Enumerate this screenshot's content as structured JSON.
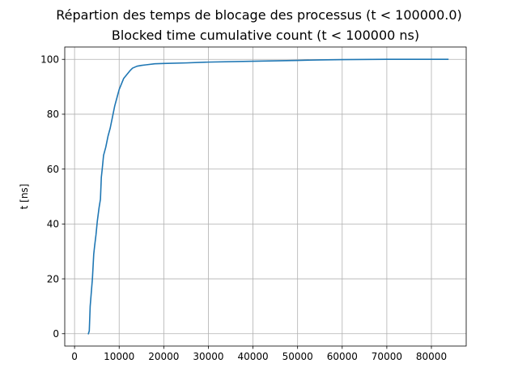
{
  "chart_data": {
    "type": "line",
    "title": "Répartion des temps de blocage des processus (t < 100000.0)",
    "subtitle": "Blocked time cumulative count (t < 100000 ns)",
    "xlabel": "",
    "ylabel": "t [ns]",
    "xlim": [
      -2200,
      87800
    ],
    "ylim": [
      -4.5,
      104.5
    ],
    "xticks": [
      0,
      10000,
      20000,
      30000,
      40000,
      50000,
      60000,
      70000,
      80000
    ],
    "xtick_labels": [
      "0",
      "10000",
      "20000",
      "30000",
      "40000",
      "50000",
      "60000",
      "70000",
      "80000"
    ],
    "yticks": [
      0,
      20,
      40,
      60,
      80,
      100
    ],
    "ytick_labels": [
      "0",
      "20",
      "40",
      "60",
      "80",
      "100"
    ],
    "grid": true,
    "colors": {
      "line": "#1f77b4"
    },
    "series": [
      {
        "x": [
          3100,
          3300,
          3500,
          3700,
          4000,
          4300,
          4500,
          4800,
          5100,
          5500,
          5800,
          6000,
          6200,
          6500,
          7000,
          7500,
          8000,
          8500,
          9000,
          9500,
          10000,
          10500,
          11000,
          11500,
          12000,
          12500,
          13000,
          14000,
          15000,
          16000,
          18000,
          20000,
          25000,
          30000,
          40000,
          50000,
          55000,
          60000,
          70000,
          80000,
          83700
        ],
        "y": [
          0,
          1,
          10,
          14,
          20,
          29,
          32,
          36,
          41,
          46,
          49,
          57,
          60,
          65,
          68,
          72,
          75,
          79,
          83,
          86,
          89,
          91,
          93,
          94,
          95,
          96,
          96.8,
          97.5,
          97.8,
          98,
          98.4,
          98.5,
          98.7,
          99,
          99.3,
          99.6,
          99.8,
          99.9,
          100,
          100,
          100
        ]
      }
    ]
  }
}
